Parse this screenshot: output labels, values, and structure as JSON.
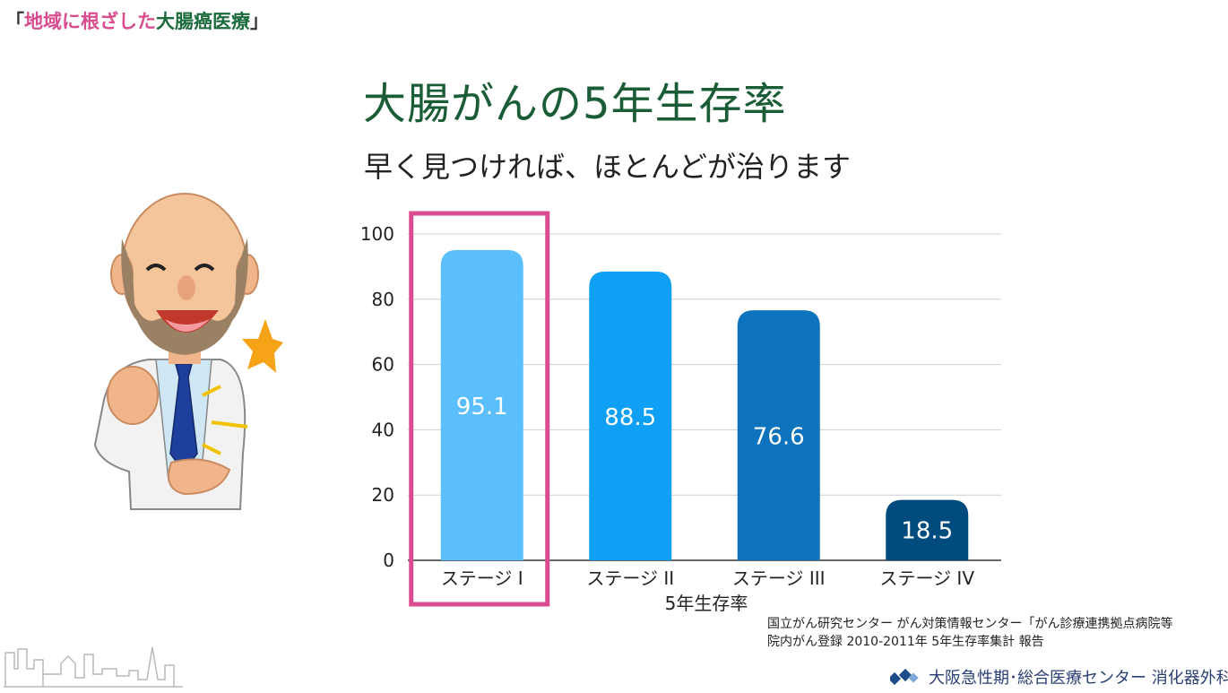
{
  "header": {
    "open_bracket": "「",
    "part1": "地域に根ざした",
    "part2": "大腸癌医療",
    "close_bracket": "」"
  },
  "title": "大腸がんの5年生存率",
  "subtitle": "早く見つければ、ほとんどが治ります",
  "chart_data": {
    "type": "bar",
    "categories": [
      "ステージ I",
      "ステージ II",
      "ステージ III",
      "ステージ IV"
    ],
    "values": [
      95.1,
      88.5,
      76.6,
      18.5
    ],
    "data_labels": [
      "95.1",
      "88.5",
      "76.6",
      "18.5"
    ],
    "xlabel": "5年生存率",
    "ylabel": "",
    "ylim": [
      0,
      100
    ],
    "yticks": [
      0,
      20,
      40,
      60,
      80,
      100
    ],
    "grid": true,
    "highlighted_category": "ステージ I",
    "colors": [
      "#5bbefd",
      "#0fa0f5",
      "#0d73bc",
      "#004b7d"
    ],
    "highlight_color": "#d94c8f"
  },
  "source": {
    "line1": "国立がん研究センター がん対策情報センター「がん診療連携拠点病院等",
    "line2": "院内がん登録 2010-2011年 5年生存率集計 報告"
  },
  "footer": {
    "brand": "大阪急性期･総合医療センター 消化器外科",
    "brand_icon": "hospital-logo-icon",
    "skyline_icon": "city-skyline-icon"
  },
  "illustration": {
    "icon": "doctor-thumbs-up-illustration",
    "star_color": "#f7a318"
  }
}
